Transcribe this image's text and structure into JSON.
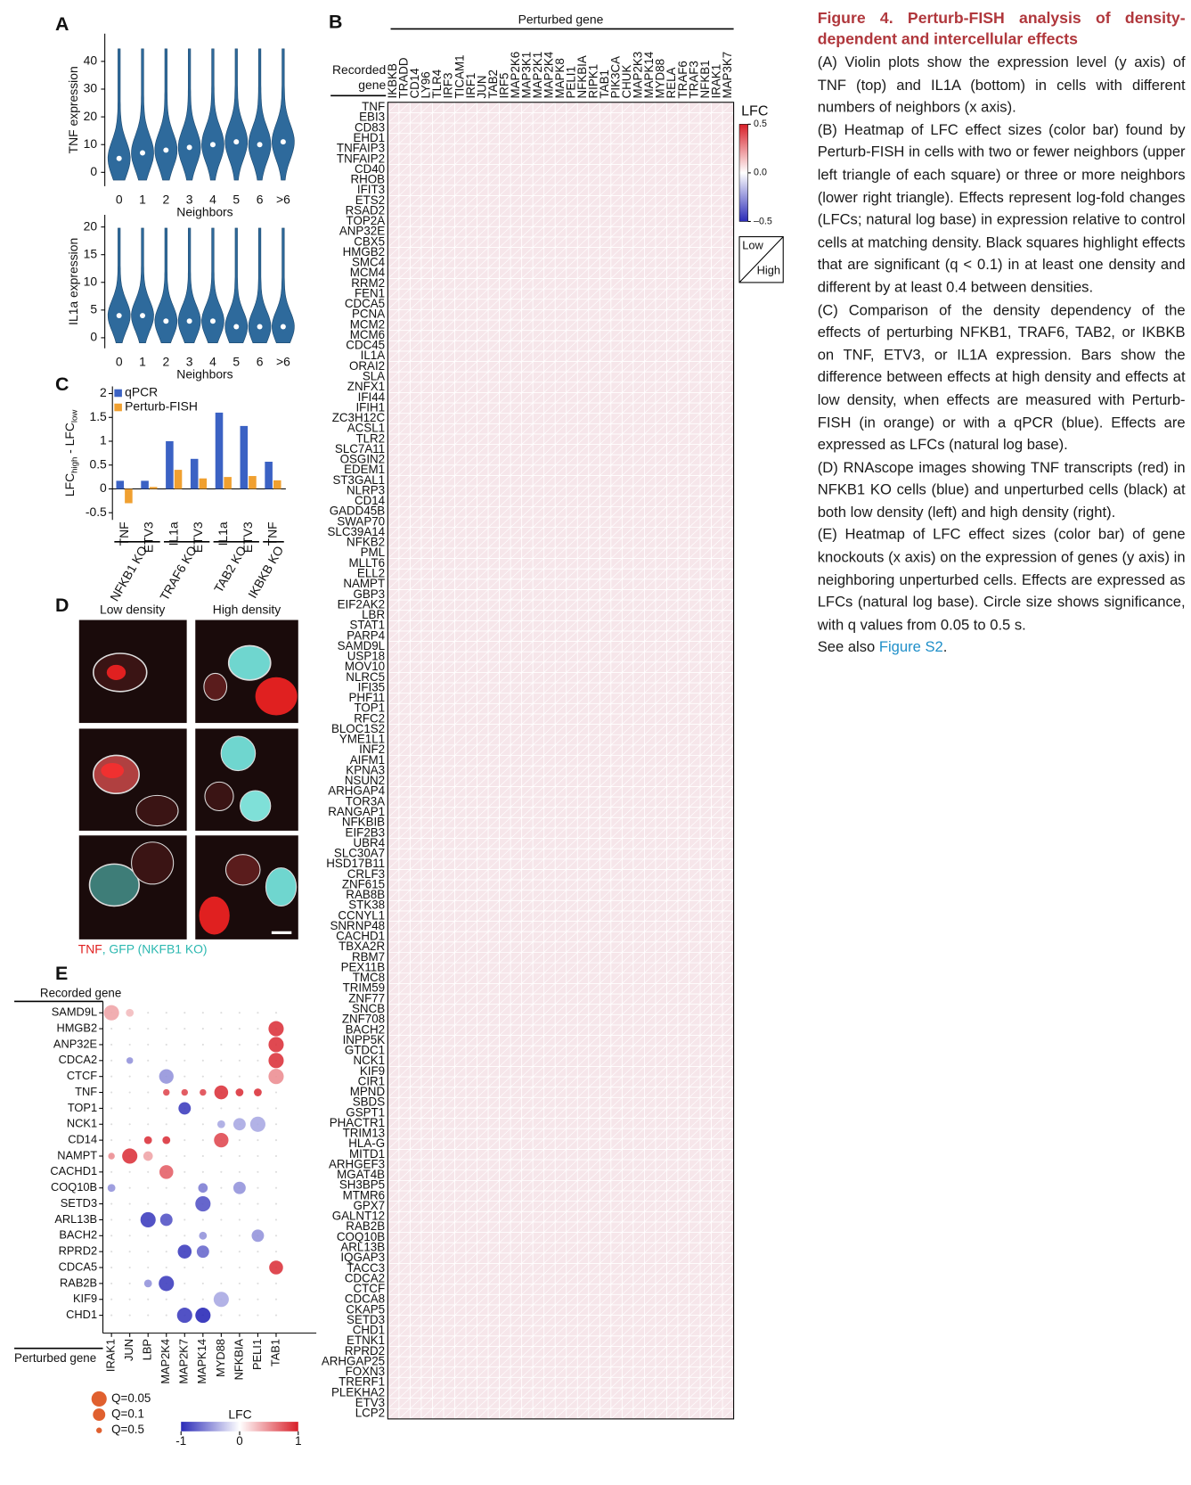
{
  "panels": [
    "A",
    "B",
    "C",
    "D",
    "E"
  ],
  "caption": {
    "title": "Figure 4.  Perturb-FISH analysis of density-dependent and intercellular effects",
    "paragraphs": [
      "(A) Violin plots show the expression level (y axis) of TNF (top) and IL1A (bottom) in cells with different numbers of neighbors (x axis).",
      "(B) Heatmap of LFC effect sizes (color bar) found by Perturb-FISH in cells with two or fewer neighbors (upper left triangle of each square) or three or more neighbors (lower right triangle). Effects represent log-fold changes (LFCs; natural log base) in expression relative to control cells at matching density. Black squares highlight effects that are significant (q < 0.1) in at least one density and different by at least 0.4 between densities.",
      "(C) Comparison of the density dependency of the effects of perturbing NFKB1, TRAF6, TAB2, or IKBKB on TNF, ETV3, or IL1A expression. Bars show the difference between effects at high density and effects at low density, when effects are measured with Perturb-FISH (in orange) or with a qPCR (blue). Effects are expressed as LFCs (natural log base).",
      "(D) RNAscope images showing TNF transcripts (red) in NFKB1 KO cells (blue) and unperturbed cells (black) at both low density (left) and high density (right).",
      "(E) Heatmap of LFC effect sizes (color bar) of gene knockouts (x axis) on the expression of genes (y axis) in neighboring unperturbed cells. Effects are expressed as LFCs (natural log base). Circle size shows significance, with q values from 0.05 to 0.5 s."
    ],
    "see_also": [
      "See also ",
      "Figure S2",
      "."
    ]
  },
  "figure_d": {
    "image_labels": [
      "Low density",
      "High density"
    ],
    "legend": [
      "TNF",
      ", GFP (NKFB1 KO)"
    ]
  },
  "chart_data": [
    {
      "type": "violin",
      "y_label": "TNF expression",
      "x_label": "Neighbors",
      "color": "#2e6a9c",
      "categories": [
        "0",
        "1",
        "2",
        "3",
        "4",
        "5",
        "6",
        ">6"
      ],
      "medians": [
        5,
        7,
        8,
        9,
        10,
        11,
        10,
        11
      ],
      "ylim": [
        -5,
        50
      ],
      "yticks": [
        0,
        10,
        20,
        30,
        40
      ]
    },
    {
      "type": "violin",
      "y_label": "IL1a expression",
      "x_label": "Neighbors",
      "color": "#2e6a9c",
      "categories": [
        "0",
        "1",
        "2",
        "3",
        "4",
        "5",
        "6",
        ">6"
      ],
      "medians": [
        4,
        4,
        3,
        3,
        3,
        2,
        2,
        2
      ],
      "ylim": [
        -1.9,
        22.2
      ],
      "yticks": [
        0,
        5,
        10,
        15,
        20
      ]
    },
    {
      "type": "bar",
      "y_label": [
        "LFC",
        "high",
        " - LFC",
        "low"
      ],
      "groups": [
        {
          "name": "NFKB1 KO",
          "categories": [
            "TNF",
            "ETV3"
          ]
        },
        {
          "name": "TRAF6 KO",
          "categories": [
            "IL1a",
            "ETV3"
          ]
        },
        {
          "name": "TAB2 KO",
          "categories": [
            "IL1a",
            "ETV3"
          ]
        },
        {
          "name": "IKBKB KO",
          "categories": [
            "TNF"
          ]
        }
      ],
      "series": [
        {
          "name": "qPCR",
          "color": "#3b62c4",
          "values": [
            0.17,
            0.17,
            1.0,
            0.63,
            1.6,
            1.32,
            0.57
          ]
        },
        {
          "name": "Perturb-FISH",
          "color": "#f0a030",
          "values": [
            -0.3,
            0.04,
            0.4,
            0.22,
            0.25,
            0.27,
            0.18
          ]
        }
      ],
      "ylim": [
        -0.65,
        2.15
      ],
      "yticks": [
        -0.5,
        0,
        0.5,
        1,
        1.5,
        2
      ]
    },
    {
      "type": "heatmap",
      "x_title": "Perturbed gene",
      "y_title": [
        "Recorded",
        "gene"
      ],
      "columns": [
        "IKBKB",
        "TRADD",
        "CD14",
        "LY96",
        "TLR4",
        "IRF3",
        "TICAM1",
        "IRF1",
        "JUN",
        "TAB2",
        "IRF5",
        "MAP2K6",
        "MAP3K1",
        "MAP2K1",
        "MAP2K4",
        "MAPK8",
        "PELI1",
        "NFKBIA",
        "RIPK1",
        "TAB1",
        "PIK3CA",
        "CHUK",
        "MAP2K3",
        "MAPK14",
        "MYD88",
        "RELA",
        "TRAF6",
        "TRAF3",
        "NFKB1",
        "IRAK1",
        "MAP3K7"
      ],
      "rows": [
        "TNF",
        "EBI3",
        "CD83",
        "EHD1",
        "TNFAIP3",
        "TNFAIP2",
        "CD40",
        "RHOB",
        "IFIT3",
        "ETS2",
        "RSAD2",
        "TOP2A",
        "ANP32E",
        "CBX5",
        "HMGB2",
        "SMC4",
        "MCM4",
        "RRM2",
        "FEN1",
        "CDCA5",
        "PCNA",
        "MCM2",
        "MCM6",
        "CDC45",
        "IL1A",
        "ORAI2",
        "SLA",
        "ZNFX1",
        "IFI44",
        "IFIH1",
        "ZC3H12C",
        "ACSL1",
        "TLR2",
        "SLC7A11",
        "OSGIN2",
        "EDEM1",
        "ST3GAL1",
        "NLRP3",
        "CD14",
        "GADD45B",
        "SWAP70",
        "SLC39A14",
        "NFKB2",
        "PML",
        "MLLT6",
        "ELL2",
        "NAMPT",
        "GBP3",
        "EIF2AK2",
        "LBR",
        "STAT1",
        "PARP4",
        "SAMD9L",
        "USP18",
        "MOV10",
        "NLRC5",
        "IFI35",
        "PHF11",
        "TOP1",
        "RFC2",
        "BLOC1S2",
        "YME1L1",
        "INF2",
        "AIFM1",
        "KPNA3",
        "NSUN2",
        "ARHGAP4",
        "TOR3A",
        "RANGAP1",
        "NFKBIB",
        "EIF2B3",
        "UBR4",
        "SLC30A7",
        "HSD17B11",
        "CRLF3",
        "ZNF615",
        "RAB8B",
        "STK38",
        "CCNYL1",
        "SNRNP48",
        "CACHD1",
        "TBXA2R",
        "RBM7",
        "PEX11B",
        "TMC8",
        "TRIM59",
        "ZNF77",
        "SNCB",
        "ZNF708",
        "BACH2",
        "INPP5K",
        "GTDC1",
        "NCK1",
        "KIF9",
        "CIR1",
        "MPND",
        "SBDS",
        "GSPT1",
        "PHACTR1",
        "TRIM13",
        "HLA-G",
        "MITD1",
        "ARHGEF3",
        "MGAT4B",
        "SH3BP5",
        "MTMR6",
        "GPX7",
        "GALNT12",
        "RAB2B",
        "COQ10B",
        "ARL13B",
        "IQGAP3",
        "TACC3",
        "CDCA2",
        "CTCF",
        "CDCA8",
        "CKAP5",
        "SETD3",
        "CHD1",
        "ETNK1",
        "RPRD2",
        "ARHGAP25",
        "FOXN3",
        "TRERF1",
        "PLEKHA2",
        "ETV3",
        "LCP2"
      ],
      "colorbar": {
        "label": "LFC",
        "lim": [
          -0.5,
          0.5
        ],
        "ticks": [
          0.5,
          {
            "value": 0,
            "label": "0.0"
          },
          {
            "value": -0.5,
            "label": "–0.5"
          }
        ]
      },
      "triangle_legend": [
        "Low",
        "High"
      ]
    },
    {
      "type": "dot",
      "y_title": "Recorded gene",
      "x_title": "Perturbed gene",
      "rows": [
        "SAMD9L",
        "HMGB2",
        "ANP32E",
        "CDCA2",
        "CTCF",
        "TNF",
        "TOP1",
        "NCK1",
        "CD14",
        "NAMPT",
        "CACHD1",
        "COQ10B",
        "SETD3",
        "ARL13B",
        "BACH2",
        "RPRD2",
        "CDCA5",
        "RAB2B",
        "KIF9",
        "CHD1"
      ],
      "columns": [
        "IRAK1",
        "JUN",
        "LBP",
        "MAP2K4",
        "MAP2K7",
        "MAPK14",
        "MYD88",
        "NFKBIA",
        "PELI1",
        "TAB1"
      ],
      "dots": [
        [
          0,
          0,
          0.4,
          0.05
        ],
        [
          0,
          1,
          0.3,
          0.3
        ],
        [
          1,
          9,
          0.9,
          0.05
        ],
        [
          2,
          9,
          0.9,
          0.05
        ],
        [
          3,
          9,
          0.9,
          0.05
        ],
        [
          4,
          9,
          0.5,
          0.05
        ],
        [
          3,
          1,
          -0.5,
          0.4
        ],
        [
          4,
          3,
          -0.5,
          0.06
        ],
        [
          5,
          3,
          0.8,
          0.4
        ],
        [
          5,
          4,
          0.8,
          0.4
        ],
        [
          5,
          5,
          0.8,
          0.4
        ],
        [
          5,
          6,
          0.9,
          0.07
        ],
        [
          5,
          7,
          0.9,
          0.3
        ],
        [
          5,
          8,
          0.9,
          0.3
        ],
        [
          6,
          4,
          -0.9,
          0.1
        ],
        [
          7,
          6,
          -0.4,
          0.3
        ],
        [
          7,
          7,
          -0.4,
          0.1
        ],
        [
          7,
          8,
          -0.4,
          0.05
        ],
        [
          8,
          2,
          0.9,
          0.3
        ],
        [
          8,
          3,
          0.9,
          0.3
        ],
        [
          8,
          6,
          0.8,
          0.06
        ],
        [
          9,
          0,
          0.5,
          0.4
        ],
        [
          9,
          1,
          0.9,
          0.05
        ],
        [
          9,
          2,
          0.4,
          0.2
        ],
        [
          10,
          3,
          0.7,
          0.07
        ],
        [
          11,
          0,
          -0.5,
          0.3
        ],
        [
          11,
          5,
          -0.6,
          0.2
        ],
        [
          11,
          7,
          -0.5,
          0.1
        ],
        [
          12,
          5,
          -0.8,
          0.05
        ],
        [
          13,
          2,
          -0.9,
          0.05
        ],
        [
          13,
          3,
          -0.8,
          0.1
        ],
        [
          14,
          5,
          -0.5,
          0.3
        ],
        [
          14,
          8,
          -0.5,
          0.1
        ],
        [
          15,
          4,
          -0.9,
          0.07
        ],
        [
          15,
          5,
          -0.7,
          0.1
        ],
        [
          16,
          9,
          0.9,
          0.07
        ],
        [
          17,
          3,
          -0.9,
          0.05
        ],
        [
          17,
          2,
          -0.5,
          0.3
        ],
        [
          18,
          6,
          -0.4,
          0.05
        ],
        [
          19,
          4,
          -0.9,
          0.05
        ],
        [
          19,
          5,
          -1,
          0.05
        ]
      ],
      "color_label": "LFC",
      "clim": [
        -1,
        1
      ],
      "cticks": [
        -1,
        0,
        1
      ],
      "size_legend": [
        {
          "label": "Q=0.05",
          "q": 0.05
        },
        {
          "label": "Q=0.1",
          "q": 0.1
        },
        {
          "label": "Q=0.5",
          "q": 0.5
        }
      ]
    }
  ]
}
